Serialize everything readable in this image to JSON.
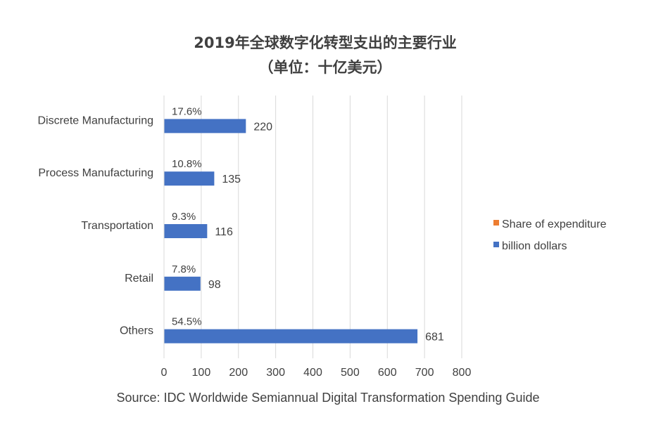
{
  "chart_data": {
    "type": "bar",
    "orientation": "horizontal",
    "title_line1": "2019年全球数字化转型支出的主要行业",
    "title_line2": "（单位：十亿美元）",
    "categories": [
      "Discrete Manufacturing",
      "Process Manufacturing",
      "Transportation",
      "Retail",
      "Others"
    ],
    "series": [
      {
        "name": "Share of expenditure",
        "color": "#ED7D31",
        "values": [
          "17.6%",
          "10.8%",
          "9.3%",
          "7.8%",
          "54.5%"
        ]
      },
      {
        "name": "billion dollars",
        "color": "#4472C4",
        "values": [
          220,
          135,
          116,
          98,
          681
        ]
      }
    ],
    "xlim": [
      0,
      800
    ],
    "xticks": [
      0,
      100,
      200,
      300,
      400,
      500,
      600,
      700,
      800
    ],
    "grid": true,
    "legend_position": "right",
    "source": "Source: IDC Worldwide  Semiannual Digital Transformation Spending Guide"
  }
}
